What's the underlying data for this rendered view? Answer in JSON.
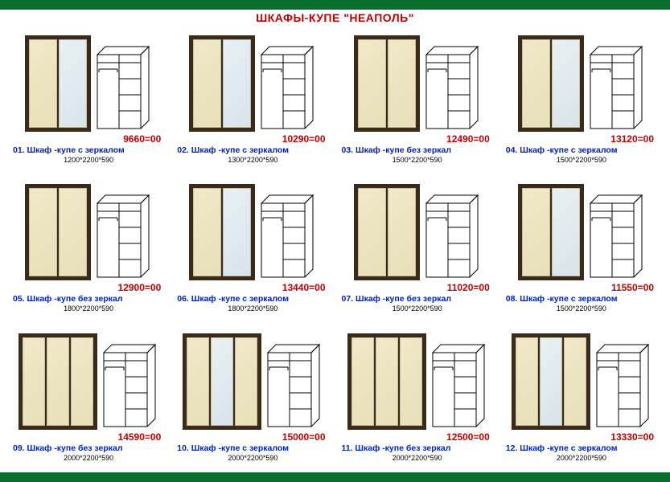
{
  "title": "ШКАФЫ-КУПЕ \"НЕАПОЛЬ\"",
  "border_color": "#0a6e2e",
  "price_color": "#c00000",
  "label_color": "#0020c0",
  "frame_color": "#3a2a1a",
  "door_color": "#e8e0b8",
  "items": [
    {
      "num": "01",
      "name": "Шкаф -купе с зеркалом",
      "price": "9660=00",
      "dims": "1200*2200*590",
      "doors": 2,
      "mirror": true
    },
    {
      "num": "02",
      "name": "Шкаф -купе с зеркалом",
      "price": "10290=00",
      "dims": "1300*2200*590",
      "doors": 2,
      "mirror": true
    },
    {
      "num": "03",
      "name": "Шкаф -купе без зеркал",
      "price": "12490=00",
      "dims": "1500*2200*590",
      "doors": 2,
      "mirror": false
    },
    {
      "num": "04",
      "name": "Шкаф -купе с зеркалом",
      "price": "13120=00",
      "dims": "1500*2200*590",
      "doors": 2,
      "mirror": true
    },
    {
      "num": "05",
      "name": "Шкаф -купе без зеркал",
      "price": "12900=00",
      "dims": "1800*2200*590",
      "doors": 2,
      "mirror": false
    },
    {
      "num": "06",
      "name": "Шкаф -купе с зеркалом",
      "price": "13440=00",
      "dims": "1800*2200*590",
      "doors": 2,
      "mirror": true
    },
    {
      "num": "07",
      "name": "Шкаф -купе без зеркал",
      "price": "11020=00",
      "dims": "1500*2200*590",
      "doors": 2,
      "mirror": false
    },
    {
      "num": "08",
      "name": "Шкаф -купе с зеркалом",
      "price": "11550=00",
      "dims": "1500*2200*590",
      "doors": 2,
      "mirror": true
    },
    {
      "num": "09",
      "name": "Шкаф -купе без зеркал",
      "price": "14590=00",
      "dims": "2000*2200*590",
      "doors": 3,
      "mirror": false
    },
    {
      "num": "10",
      "name": "Шкаф -купе с зеркалом",
      "price": "15000=00",
      "dims": "2000*2200*590",
      "doors": 3,
      "mirror": true
    },
    {
      "num": "11",
      "name": "Шкаф -купе без зеркал",
      "price": "12500=00",
      "dims": "2000*2200*590",
      "doors": 3,
      "mirror": false
    },
    {
      "num": "12",
      "name": "Шкаф -купе с зеркалом",
      "price": "13330=00",
      "dims": "2000*2200*590",
      "doors": 3,
      "mirror": true
    }
  ]
}
